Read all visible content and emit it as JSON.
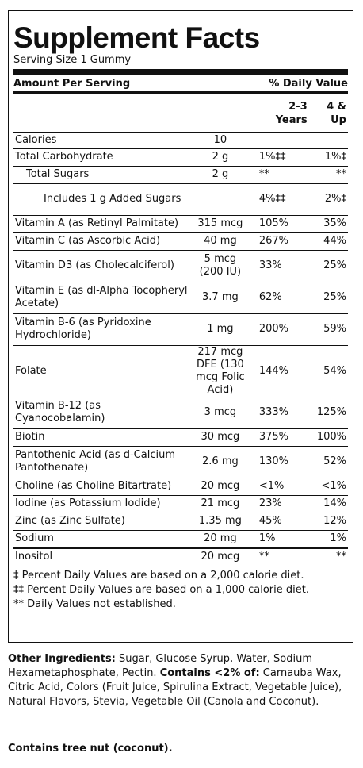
{
  "title": "Supplement Facts",
  "serving_size": "Serving Size 1 Gummy",
  "header": {
    "amount": "Amount Per Serving",
    "dv": "% Daily Value"
  },
  "col_2_3": "2-3 Years",
  "col_4up": "4 & Up",
  "rows": [
    {
      "name": "Calories",
      "amount": "10",
      "dv1": "",
      "dv2": "",
      "indent": 0,
      "h": 20
    },
    {
      "name": "Total Carbohydrate",
      "amount": "2 g",
      "dv1": "1%‡‡",
      "dv2": "1%‡",
      "indent": 0,
      "h": 22
    },
    {
      "name": "Total Sugars",
      "amount": "2 g",
      "dv1": "**",
      "dv2": "**",
      "indent": 1,
      "h": 22
    },
    {
      "name": "Includes 1 g Added Sugars",
      "amount": "",
      "dv1": "4%‡‡",
      "dv2": "2%‡",
      "indent": 2,
      "h": 40
    },
    {
      "name": "Vitamin A (as Retinyl Palmitate)",
      "amount": "315 mcg",
      "dv1": "105%",
      "dv2": "35%",
      "indent": 0,
      "h": 22
    },
    {
      "name": "Vitamin C (as Ascorbic Acid)",
      "amount": "40 mg",
      "dv1": "267%",
      "dv2": "44%",
      "indent": 0,
      "h": 22
    },
    {
      "name": "Vitamin D3 (as Cholecalciferol)",
      "amount": "5 mcg (200 IU)",
      "dv1": "33%",
      "dv2": "25%",
      "indent": 0,
      "h": 40
    },
    {
      "name": "Vitamin E (as dl-Alpha Tocopheryl Acetate)",
      "amount": "3.7 mg",
      "dv1": "62%",
      "dv2": "25%",
      "indent": 0,
      "h": 40
    },
    {
      "name": "Vitamin B-6 (as Pyridoxine Hydrochloride)",
      "amount": "1 mg",
      "dv1": "200%",
      "dv2": "59%",
      "indent": 0,
      "h": 40
    },
    {
      "name": "Folate",
      "amount": "217 mcg DFE (130 mcg Folic Acid)",
      "dv1": "144%",
      "dv2": "54%",
      "indent": 0,
      "h": 60
    },
    {
      "name": "Vitamin B-12 (as Cyanocobalamin)",
      "amount": "3 mcg",
      "dv1": "333%",
      "dv2": "125%",
      "indent": 0,
      "h": 40
    },
    {
      "name": "Biotin",
      "amount": "30 mcg",
      "dv1": "375%",
      "dv2": "100%",
      "indent": 0,
      "h": 22
    },
    {
      "name": "Pantothenic Acid (as d-Calcium Pantothenate)",
      "amount": "2.6 mg",
      "dv1": "130%",
      "dv2": "52%",
      "indent": 0,
      "h": 40
    },
    {
      "name": "Choline (as Choline Bitartrate)",
      "amount": "20 mcg",
      "dv1": "<1%",
      "dv2": "<1%",
      "indent": 0,
      "h": 22
    },
    {
      "name": "Iodine (as Potassium Iodide)",
      "amount": "21 mcg",
      "dv1": "23%",
      "dv2": "14%",
      "indent": 0,
      "h": 22
    },
    {
      "name": "Zinc (as Zinc Sulfate)",
      "amount": "1.35 mg",
      "dv1": "45%",
      "dv2": "12%",
      "indent": 0,
      "h": 22
    },
    {
      "name": "Sodium",
      "amount": "20 mg",
      "dv1": "1%",
      "dv2": "1%",
      "indent": 0,
      "h": 22,
      "thick": true
    },
    {
      "name": "Inositol",
      "amount": "20 mcg",
      "dv1": "**",
      "dv2": "**",
      "indent": 0,
      "h": 22,
      "nob": true
    }
  ],
  "footnotes": [
    "‡ Percent Daily Values are based on a 2,000 calorie diet.",
    "‡‡ Percent Daily Values are based on a 1,000 calorie diet.",
    "** Daily Values not established."
  ],
  "other_ingredients": {
    "label": "Other Ingredients:",
    "text": " Sugar, Glucose Syrup, Water, Sodium Hexametaphosphate, Pectin. ",
    "contains_label": "Contains <2% of:",
    "contains_text": " Carnauba Wax, Citric Acid, Colors (Fruit Juice, Spirulina Extract, Vegetable Juice), Natural Flavors, Stevia, Vegetable Oil (Canola and Coconut)."
  },
  "allergen": "Contains tree nut (coconut)."
}
